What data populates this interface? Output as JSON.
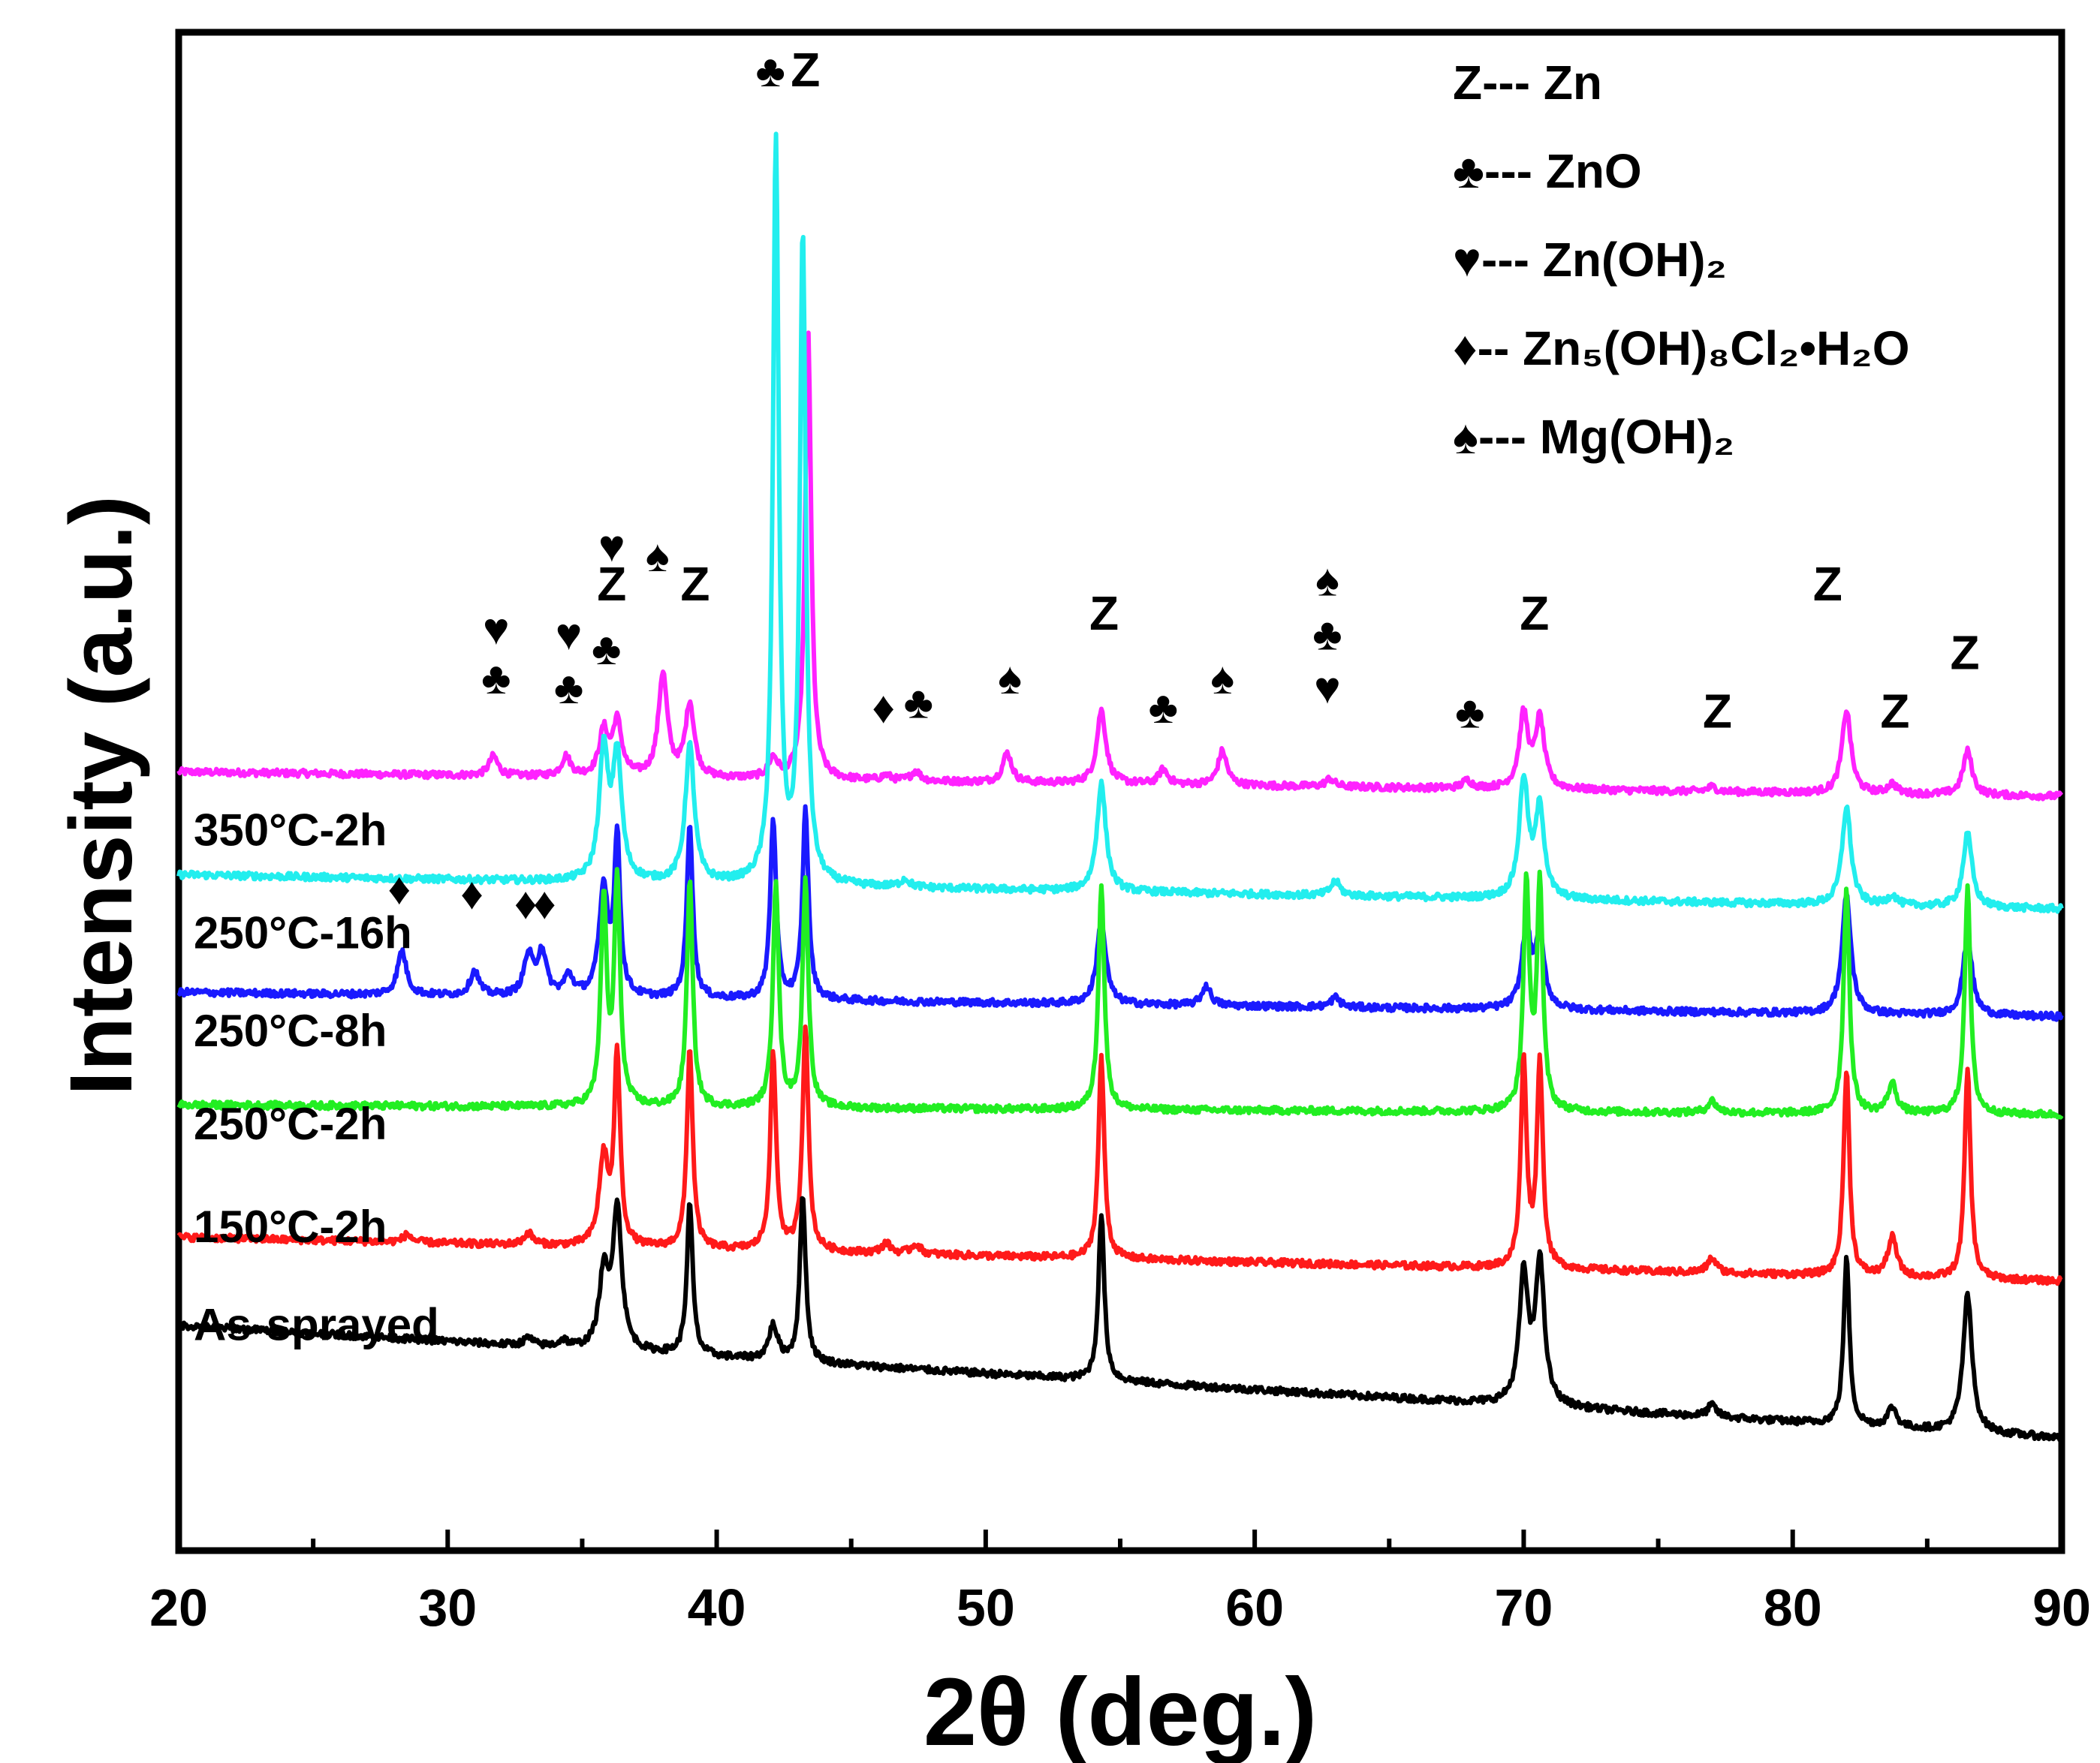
{
  "chart_data": {
    "type": "line",
    "xlabel": "2θ (deg.)",
    "ylabel": "Intensity (a.u.)",
    "xlim": [
      20,
      90
    ],
    "xticks": [
      20,
      30,
      40,
      50,
      60,
      70,
      80,
      90
    ],
    "grid": false,
    "legend": {
      "position": "top-right",
      "entries": [
        {
          "symbol": "Z",
          "dash": "---",
          "phase": "Zn"
        },
        {
          "symbol": "♣",
          "dash": "---",
          "phase": "ZnO"
        },
        {
          "symbol": "♥",
          "dash": "---",
          "phase": "Zn(OH)₂"
        },
        {
          "symbol": "♦",
          "dash": "--",
          "phase": "Zn₅(OH)₈Cl₂•H₂O"
        },
        {
          "symbol": "♠",
          "dash": "---",
          "phase": "Mg(OH)₂"
        }
      ]
    },
    "series": [
      {
        "name": "As-sprayed",
        "color": "#000000",
        "baseline": [
          2.3,
          1.15
        ],
        "peaks": [
          [
            33,
            0.08
          ],
          [
            34.3,
            0.07
          ],
          [
            35.8,
            0.75
          ],
          [
            36.3,
            1.45
          ],
          [
            39.0,
            1.55
          ],
          [
            42.1,
            0.35
          ],
          [
            43.2,
            1.7
          ],
          [
            54.3,
            1.7
          ],
          [
            70.0,
            1.3
          ],
          [
            70.6,
            1.45
          ],
          [
            77.0,
            0.12
          ],
          [
            82.0,
            1.7
          ],
          [
            83.7,
            0.2
          ],
          [
            86.5,
            1.4
          ]
        ]
      },
      {
        "name": "150°C-2h",
        "color": "#ff1a1a",
        "baseline": [
          3.2,
          2.75
        ],
        "peaks": [
          [
            28.5,
            0.08
          ],
          [
            33,
            0.12
          ],
          [
            35.8,
            0.9
          ],
          [
            36.3,
            1.95
          ],
          [
            39.0,
            2.05
          ],
          [
            42.1,
            2.0
          ],
          [
            43.3,
            2.3
          ],
          [
            46.3,
            0.1
          ],
          [
            47.4,
            0.1
          ],
          [
            54.3,
            2.05
          ],
          [
            70.0,
            2.1
          ],
          [
            70.6,
            2.1
          ],
          [
            77.0,
            0.15
          ],
          [
            82.0,
            2.1
          ],
          [
            83.7,
            0.4
          ],
          [
            86.5,
            2.15
          ]
        ]
      },
      {
        "name": "250°C-2h",
        "color": "#22ee22",
        "baseline": [
          4.55,
          4.45
        ],
        "peaks": [
          [
            35.8,
            2.1
          ],
          [
            36.3,
            2.3
          ],
          [
            39.0,
            2.3
          ],
          [
            42.2,
            2.3
          ],
          [
            43.3,
            2.3
          ],
          [
            54.3,
            2.3
          ],
          [
            70.1,
            2.3
          ],
          [
            70.6,
            2.3
          ],
          [
            77.0,
            0.12
          ],
          [
            82.0,
            2.3
          ],
          [
            83.7,
            0.3
          ],
          [
            86.5,
            2.3
          ]
        ]
      },
      {
        "name": "250°C-8h",
        "color": "#1a1aff",
        "baseline": [
          5.7,
          5.45
        ],
        "peaks": [
          [
            28.3,
            0.45
          ],
          [
            31.0,
            0.25
          ],
          [
            33.0,
            0.4
          ],
          [
            33.5,
            0.45
          ],
          [
            34.5,
            0.2
          ],
          [
            35.8,
            1.1
          ],
          [
            36.3,
            1.6
          ],
          [
            39.0,
            1.8
          ],
          [
            42.1,
            1.85
          ],
          [
            43.3,
            1.95
          ],
          [
            54.3,
            0.85
          ],
          [
            58.2,
            0.2
          ],
          [
            63.0,
            0.1
          ],
          [
            70.1,
            0.8
          ],
          [
            70.6,
            0.7
          ],
          [
            82.0,
            1.2
          ],
          [
            86.5,
            0.8
          ]
        ]
      },
      {
        "name": "250°C-16h",
        "color": "#22eeee",
        "baseline": [
          6.9,
          6.55
        ],
        "peaks": [
          [
            35.8,
            1.3
          ],
          [
            36.3,
            1.25
          ],
          [
            39.0,
            1.4
          ],
          [
            42.2,
            7.55
          ],
          [
            43.2,
            6.6
          ],
          [
            47.0,
            0.08
          ],
          [
            54.3,
            1.1
          ],
          [
            63.0,
            0.15
          ],
          [
            70.0,
            1.2
          ],
          [
            70.6,
            0.9
          ],
          [
            82.0,
            1.0
          ],
          [
            83.7,
            0.1
          ],
          [
            86.5,
            0.75
          ]
        ]
      },
      {
        "name": "350°C-2h",
        "color": "#ff22ff",
        "baseline": [
          7.95,
          7.7
        ],
        "peaks": [
          [
            31.7,
            0.2
          ],
          [
            34.4,
            0.2
          ],
          [
            35.8,
            0.45
          ],
          [
            36.3,
            0.55
          ],
          [
            38.0,
            1.05
          ],
          [
            39.0,
            0.75
          ],
          [
            42.1,
            0.2
          ],
          [
            43.4,
            4.6
          ],
          [
            46.3,
            0.05
          ],
          [
            47.4,
            0.1
          ],
          [
            50.8,
            0.3
          ],
          [
            54.3,
            0.75
          ],
          [
            56.6,
            0.15
          ],
          [
            58.8,
            0.35
          ],
          [
            62.8,
            0.08
          ],
          [
            67.9,
            0.08
          ],
          [
            70.0,
            0.75
          ],
          [
            70.6,
            0.7
          ],
          [
            77.0,
            0.05
          ],
          [
            82.0,
            0.85
          ],
          [
            83.7,
            0.1
          ],
          [
            86.5,
            0.45
          ]
        ]
      }
    ],
    "annotations": [
      {
        "text": "♣",
        "x": 42.0,
        "y": 14.95
      },
      {
        "text": "Z",
        "x": 43.3,
        "y": 14.95
      },
      {
        "text": "♥",
        "x": 31.8,
        "y": 9.25
      },
      {
        "text": "♣",
        "x": 31.8,
        "y": 8.75
      },
      {
        "text": "♥",
        "x": 34.5,
        "y": 9.2
      },
      {
        "text": "♣",
        "x": 34.5,
        "y": 8.65
      },
      {
        "text": "♣",
        "x": 35.9,
        "y": 9.05
      },
      {
        "text": "♥",
        "x": 36.1,
        "y": 10.1
      },
      {
        "text": "Z",
        "x": 36.1,
        "y": 9.7
      },
      {
        "text": "♠",
        "x": 37.8,
        "y": 10.0
      },
      {
        "text": "Z",
        "x": 39.2,
        "y": 9.7
      },
      {
        "text": "♦",
        "x": 46.2,
        "y": 8.45
      },
      {
        "text": "♣",
        "x": 47.5,
        "y": 8.5
      },
      {
        "text": "♠",
        "x": 50.9,
        "y": 8.75
      },
      {
        "text": "Z",
        "x": 54.4,
        "y": 9.4
      },
      {
        "text": "♣",
        "x": 56.6,
        "y": 8.45
      },
      {
        "text": "♠",
        "x": 58.8,
        "y": 8.75
      },
      {
        "text": "♠",
        "x": 62.7,
        "y": 9.75
      },
      {
        "text": "♣",
        "x": 62.7,
        "y": 9.2
      },
      {
        "text": "♥",
        "x": 62.7,
        "y": 8.65
      },
      {
        "text": "♣",
        "x": 68.0,
        "y": 8.4
      },
      {
        "text": "Z",
        "x": 70.4,
        "y": 9.4
      },
      {
        "text": "Z",
        "x": 77.2,
        "y": 8.4
      },
      {
        "text": "Z",
        "x": 81.3,
        "y": 9.7
      },
      {
        "text": "Z",
        "x": 83.8,
        "y": 8.4
      },
      {
        "text": "Z",
        "x": 86.4,
        "y": 9.0
      },
      {
        "text": "♦",
        "x": 28.2,
        "y": 6.6
      },
      {
        "text": "♦",
        "x": 30.9,
        "y": 6.55
      },
      {
        "text": "♦",
        "x": 32.9,
        "y": 6.45
      },
      {
        "text": "♦",
        "x": 33.6,
        "y": 6.45
      }
    ],
    "series_labels": [
      {
        "text": "350°C-2h",
        "y": 7.2
      },
      {
        "text": "250°C-16h",
        "y": 6.15
      },
      {
        "text": "250°C-8h",
        "y": 5.15
      },
      {
        "text": "250°C-2h",
        "y": 4.2
      },
      {
        "text": "150°C-2h",
        "y": 3.15
      },
      {
        "text": "As-sprayed",
        "y": 2.15
      }
    ]
  }
}
